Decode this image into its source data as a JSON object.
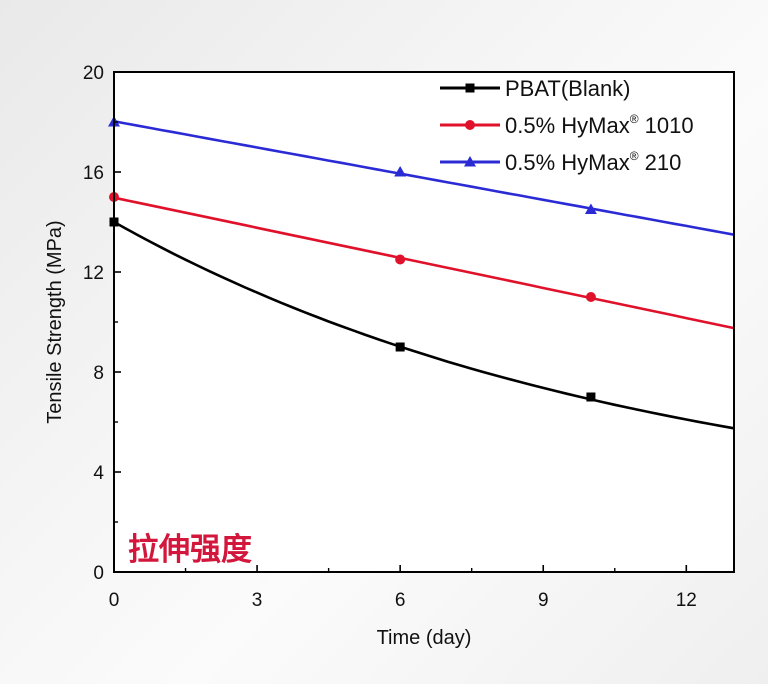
{
  "chart_data": {
    "type": "line",
    "title": "",
    "annotation": "拉伸强度",
    "xlabel": "Time (day)",
    "ylabel": "Tensile Strength (MPa)",
    "xlim": [
      0,
      13
    ],
    "ylim": [
      0,
      20
    ],
    "xticks": [
      0,
      3,
      6,
      9,
      12
    ],
    "yticks": [
      0,
      4,
      8,
      12,
      16,
      20
    ],
    "grid": false,
    "legend_position": "top-right",
    "series": [
      {
        "name": "PBAT(Blank)",
        "color": "#000000",
        "marker": "square",
        "fit": "exponential-decay",
        "x": [
          0,
          6,
          10
        ],
        "y": [
          14,
          9,
          7
        ]
      },
      {
        "name": "0.5% HyMax® 1010",
        "legend_base": "0.5% HyMax",
        "legend_sup": "®",
        "legend_tail": " 1010",
        "color": "#e0122b",
        "marker": "circle",
        "fit": "linear",
        "x": [
          0,
          6,
          10
        ],
        "y": [
          15,
          12.5,
          11
        ]
      },
      {
        "name": "0.5% HyMax® 210",
        "legend_base": "0.5% HyMax",
        "legend_sup": "®",
        "legend_tail": " 210",
        "color": "#2b2bd6",
        "marker": "triangle",
        "fit": "linear",
        "x": [
          0,
          6,
          10
        ],
        "y": [
          18,
          16,
          14.5
        ]
      }
    ]
  }
}
